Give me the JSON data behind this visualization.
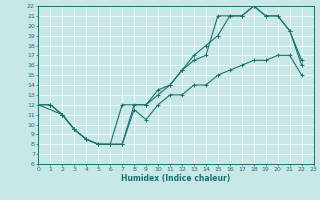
{
  "title": "",
  "xlabel": "Humidex (Indice chaleur)",
  "bg_color": "#c8e8e8",
  "grid_color": "#ffffff",
  "line_color": "#1a7070",
  "xlim": [
    0,
    23
  ],
  "ylim": [
    6,
    22
  ],
  "xticks": [
    0,
    1,
    2,
    3,
    4,
    5,
    6,
    7,
    8,
    9,
    10,
    11,
    12,
    13,
    14,
    15,
    16,
    17,
    18,
    19,
    20,
    21,
    22,
    23
  ],
  "yticks": [
    6,
    7,
    8,
    9,
    10,
    11,
    12,
    13,
    14,
    15,
    16,
    17,
    18,
    19,
    20,
    21,
    22
  ],
  "line_bottom_x": [
    0,
    1,
    2,
    3,
    4,
    5,
    6,
    7,
    8,
    9,
    10,
    11,
    12,
    13,
    14,
    15,
    16,
    17,
    18,
    19,
    20,
    21,
    22
  ],
  "line_bottom_y": [
    12,
    12,
    11,
    9.5,
    8.5,
    8,
    8,
    8,
    11.5,
    10.5,
    12,
    13,
    13,
    14,
    14,
    15,
    15.5,
    16,
    16.5,
    16.5,
    17,
    17,
    15
  ],
  "line_top_x": [
    0,
    1,
    2,
    3,
    4,
    5,
    6,
    7,
    8,
    9,
    10,
    11,
    12,
    13,
    14,
    15,
    16,
    17,
    18,
    19,
    20,
    21,
    22
  ],
  "line_top_y": [
    12,
    12,
    11,
    9.5,
    8.5,
    8,
    8,
    8,
    12,
    12,
    13.5,
    14,
    15.5,
    16.5,
    17,
    21,
    21,
    21,
    22,
    21,
    21,
    19.5,
    16.5
  ],
  "line_mid_x": [
    0,
    2,
    3,
    4,
    5,
    6,
    7,
    9,
    10,
    11,
    12,
    13,
    14,
    15,
    16,
    17,
    18,
    19,
    20,
    21,
    22
  ],
  "line_mid_y": [
    12,
    11,
    9.5,
    8.5,
    8,
    8,
    12,
    12,
    13,
    14,
    15.5,
    17,
    18,
    19,
    21,
    21,
    22,
    21,
    21,
    19.5,
    16
  ]
}
